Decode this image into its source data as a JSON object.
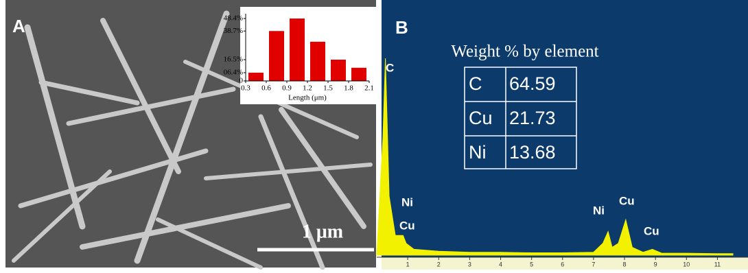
{
  "panels": [
    {
      "label": "A",
      "scale_bar": "1 μm"
    },
    {
      "label": "B",
      "table_title": "Weight % by element",
      "table": {
        "rows": [
          [
            "C",
            "64.59"
          ],
          [
            "Cu",
            "21.73"
          ],
          [
            "Ni",
            "13.68"
          ]
        ]
      },
      "peak_labels": [
        "C",
        "Ni",
        "Cu",
        "Ni",
        "Cu",
        "Cu"
      ]
    }
  ],
  "chart_data": [
    {
      "type": "histogram",
      "bins": [
        0.3,
        0.6,
        0.9,
        1.2,
        1.5,
        1.8,
        2.1
      ],
      "values": [
        6.4,
        38.7,
        48.4,
        30.4,
        16.5,
        10.2
      ],
      "color": "#e00000",
      "xlabel": "Length (μm)",
      "xlim": [
        0.3,
        2.1
      ],
      "xticks": [
        0.3,
        0.6,
        0.9,
        1.2,
        1.5,
        1.8,
        2.1
      ],
      "ylim": [
        0,
        50
      ],
      "yticks": [
        0,
        {
          "value": 6.4,
          "label": "06.4%"
        },
        {
          "value": 16.5,
          "label": "16.5%"
        },
        {
          "value": 38.7,
          "label": "38.7%"
        },
        {
          "value": 48.4,
          "label": "48.4%"
        }
      ]
    },
    {
      "type": "area",
      "color": "#f2f200",
      "x": [
        0,
        0.2,
        0.28,
        0.4,
        0.6,
        0.85,
        0.95,
        1.2,
        2,
        3,
        4,
        5,
        6,
        7,
        7.3,
        7.47,
        7.6,
        7.8,
        8.04,
        8.25,
        8.6,
        8.9,
        9.2,
        10,
        11,
        11.5
      ],
      "values": [
        0,
        60,
        100,
        30,
        10,
        10,
        6,
        3,
        2,
        1.5,
        1.5,
        1.2,
        1.2,
        1.5,
        6,
        12,
        4,
        6,
        18,
        4,
        1.5,
        3,
        1,
        1,
        0.8,
        0.8
      ],
      "xlim": [
        0,
        11.5
      ],
      "xticks": [
        1,
        2,
        3,
        4,
        5,
        6,
        7,
        8,
        9,
        10,
        11
      ],
      "ylim": [
        0,
        100
      ]
    }
  ]
}
